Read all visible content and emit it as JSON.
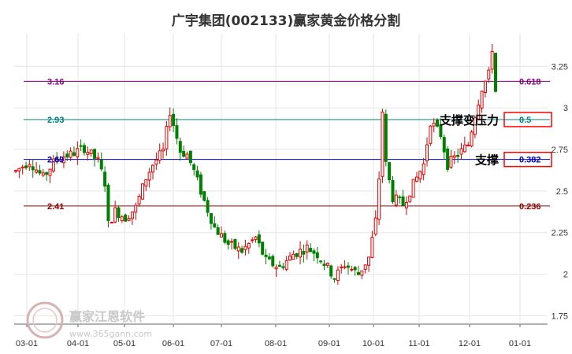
{
  "title": "广宇集团(002133)赢家黄金价格分割",
  "chart_data": {
    "type": "candlestick",
    "title": "广宇集团(002133)赢家黄金价格分割",
    "x_ticks": [
      "03-01",
      "04-01",
      "05-01",
      "06-01",
      "07-01",
      "08-01",
      "09-01",
      "10-01",
      "11-01",
      "12-01",
      "01-01"
    ],
    "y_ticks": [
      "1.75",
      "2",
      "2.25",
      "2.5",
      "2.75",
      "3",
      "3.25"
    ],
    "ylim": [
      1.7,
      3.45
    ],
    "grid": true,
    "up_color": "#e60000",
    "down_color": "#008000",
    "levels": [
      {
        "value": 3.16,
        "value_label": "3.16",
        "ratio": "0.618",
        "color": "#800080"
      },
      {
        "value": 2.93,
        "value_label": "2.93",
        "ratio": "0.5",
        "color": "#008080"
      },
      {
        "value": 2.69,
        "value_label": "2.69",
        "ratio": "0.382",
        "color": "#0000cc"
      },
      {
        "value": 2.41,
        "value_label": "2.41",
        "ratio": "0.236",
        "color": "#8b0000"
      }
    ],
    "annotations": [
      {
        "text": "支撑变压力",
        "level": 2.93,
        "boxed_ratio": "0.5"
      },
      {
        "text": "支撑",
        "level": 2.69,
        "boxed_ratio": "0.382"
      }
    ],
    "watermark": {
      "text": "赢家江恩软件",
      "url": "www.365gann.com"
    },
    "close_path": [
      [
        0,
        2.62
      ],
      [
        4,
        2.68
      ],
      [
        8,
        2.58
      ],
      [
        12,
        2.7
      ],
      [
        16,
        2.72
      ],
      [
        20,
        2.76
      ],
      [
        24,
        2.68
      ],
      [
        26,
        2.55
      ],
      [
        27,
        2.3
      ],
      [
        29,
        2.38
      ],
      [
        32,
        2.34
      ],
      [
        35,
        2.4
      ],
      [
        38,
        2.58
      ],
      [
        40,
        2.66
      ],
      [
        43,
        2.74
      ],
      [
        45,
        2.98
      ],
      [
        47,
        2.82
      ],
      [
        48,
        2.74
      ],
      [
        50,
        2.72
      ],
      [
        52,
        2.62
      ],
      [
        55,
        2.44
      ],
      [
        58,
        2.28
      ],
      [
        62,
        2.18
      ],
      [
        66,
        2.14
      ],
      [
        70,
        2.22
      ],
      [
        73,
        2.08
      ],
      [
        77,
        2.04
      ],
      [
        81,
        2.12
      ],
      [
        85,
        2.16
      ],
      [
        88,
        2.12
      ],
      [
        91,
        2.04
      ],
      [
        93,
        1.98
      ],
      [
        96,
        2.06
      ],
      [
        100,
        2.0
      ],
      [
        103,
        2.1
      ],
      [
        105,
        2.32
      ],
      [
        106,
        2.58
      ],
      [
        107,
        2.98
      ],
      [
        108,
        2.66
      ],
      [
        110,
        2.46
      ],
      [
        113,
        2.42
      ],
      [
        116,
        2.54
      ],
      [
        119,
        2.66
      ],
      [
        121,
        2.92
      ],
      [
        124,
        2.84
      ],
      [
        126,
        2.66
      ],
      [
        129,
        2.72
      ],
      [
        132,
        2.78
      ],
      [
        134,
        2.96
      ],
      [
        136,
        3.12
      ],
      [
        138,
        3.2
      ],
      [
        139,
        3.36
      ],
      [
        140,
        3.1
      ]
    ]
  }
}
